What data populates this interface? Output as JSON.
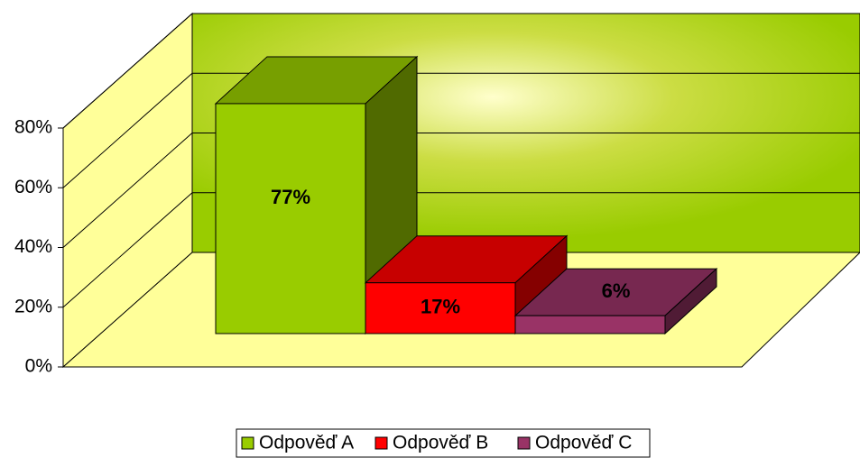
{
  "chart_data": {
    "type": "bar3d",
    "series": [
      {
        "name": "Odpověď A",
        "color": "#99cc00",
        "values": [
          77
        ],
        "value_labels": [
          "77%"
        ]
      },
      {
        "name": "Odpověď B",
        "color": "#ff0000",
        "values": [
          17
        ],
        "value_labels": [
          "17%"
        ]
      },
      {
        "name": "Odpověď C",
        "color": "#993366",
        "values": [
          6
        ],
        "value_labels": [
          "6%"
        ]
      }
    ],
    "ylim": [
      0,
      80
    ],
    "yticks": [
      {
        "value": 0,
        "label": "0%"
      },
      {
        "value": 20,
        "label": "20%"
      },
      {
        "value": 40,
        "label": "40%"
      },
      {
        "value": 60,
        "label": "60%"
      },
      {
        "value": 80,
        "label": "80%"
      }
    ],
    "grid": true,
    "legend": "bottom"
  }
}
